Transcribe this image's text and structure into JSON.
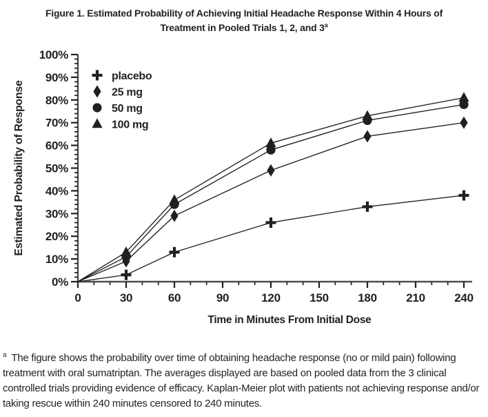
{
  "figure": {
    "title_line1": "Figure 1. Estimated Probability of Achieving Initial Headache Response Within 4 Hours of",
    "title_line2": "Treatment in Pooled Trials 1, 2, and 3",
    "title_superscript": "a",
    "footnote_marker": "a",
    "footnote_text": "The figure shows the probability over time of obtaining headache response (no or mild pain) following treatment with oral sumatriptan. The averages displayed are based on pooled data from the 3 clinical controlled trials providing evidence of efficacy. Kaplan-Meier plot with patients not achieving response and/or taking rescue within 240 minutes censored to 240 minutes."
  },
  "chart_data": {
    "type": "line",
    "title": "Estimated Probability of Achieving Initial Headache Response Within 4 Hours of Treatment in Pooled Trials 1, 2, and 3",
    "xlabel": "Time in Minutes From Initial Dose",
    "ylabel": "Estimated Probability of Response",
    "x": [
      0,
      30,
      60,
      120,
      180,
      240
    ],
    "xlim": [
      0,
      240
    ],
    "ylim": [
      0,
      100
    ],
    "x_major_step": 30,
    "x_minor_step": 10,
    "y_major_step": 10,
    "y_minor_step": 2,
    "y_tick_suffix": "%",
    "x_tick_labels": [
      "0",
      "30",
      "60",
      "90",
      "120",
      "150",
      "180",
      "210",
      "240"
    ],
    "y_tick_labels": [
      "0%",
      "10%",
      "20%",
      "30%",
      "40%",
      "50%",
      "60%",
      "70%",
      "80%",
      "90%",
      "100%"
    ],
    "grid": false,
    "legend_position": "top-left-inside",
    "series": [
      {
        "name": "placebo",
        "marker": "plus",
        "values": [
          0,
          3,
          13,
          26,
          33,
          38
        ]
      },
      {
        "name": "25 mg",
        "marker": "diamond",
        "values": [
          0,
          9,
          29,
          49,
          64,
          70
        ]
      },
      {
        "name": "50 mg",
        "marker": "circle",
        "values": [
          0,
          11,
          34,
          58,
          71,
          78
        ]
      },
      {
        "name": "100 mg",
        "marker": "triangle",
        "values": [
          0,
          13,
          36,
          61,
          73,
          81
        ]
      }
    ],
    "colors": {
      "ink": "#231f20",
      "axis": "#4d4d4d",
      "background": "#ffffff"
    }
  }
}
